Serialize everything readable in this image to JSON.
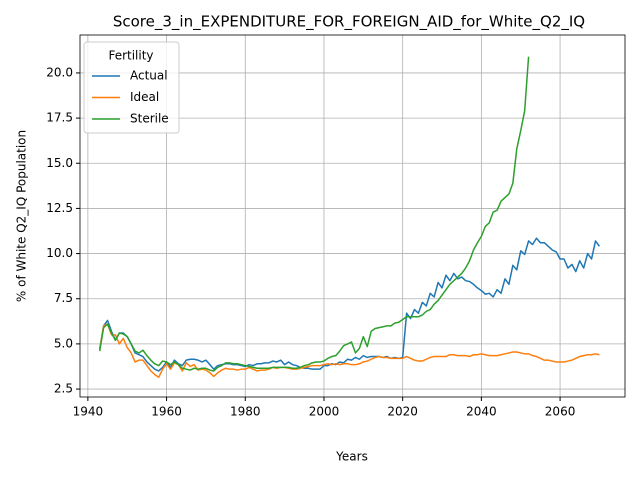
{
  "chart_data": {
    "type": "line",
    "title": "Score_3_in_EXPENDITURE_FOR_FOREIGN_AID_for_White_Q2_IQ",
    "xlabel": "Years",
    "ylabel": "% of White Q2_IQ Population",
    "legend_title": "Fertility",
    "legend": "upper left",
    "grid": true,
    "x": [
      1943,
      1944,
      1945,
      1946,
      1947,
      1948,
      1949,
      1950,
      1951,
      1952,
      1953,
      1954,
      1955,
      1956,
      1957,
      1958,
      1959,
      1960,
      1961,
      1962,
      1963,
      1964,
      1965,
      1966,
      1967,
      1968,
      1969,
      1970,
      1971,
      1972,
      1973,
      1974,
      1975,
      1976,
      1977,
      1978,
      1979,
      1980,
      1981,
      1982,
      1983,
      1984,
      1985,
      1986,
      1987,
      1988,
      1989,
      1990,
      1991,
      1992,
      1993,
      1994,
      1995,
      1996,
      1997,
      1998,
      1999,
      2000,
      2001,
      2002,
      2003,
      2004,
      2005,
      2006,
      2007,
      2008,
      2009,
      2010,
      2011,
      2012,
      2013,
      2014,
      2015,
      2016,
      2017,
      2018,
      2019,
      2020,
      2021,
      2022,
      2023,
      2024,
      2025,
      2026,
      2027,
      2028,
      2029,
      2030,
      2031,
      2032,
      2033,
      2034,
      2035,
      2036,
      2037,
      2038,
      2039,
      2040,
      2041,
      2042,
      2043,
      2044,
      2045,
      2046,
      2047,
      2048,
      2049,
      2050,
      2051,
      2052,
      2053,
      2054,
      2055,
      2056,
      2057,
      2058,
      2059,
      2060,
      2061,
      2062,
      2063,
      2064,
      2065,
      2066,
      2067,
      2068,
      2069,
      2070
    ],
    "series": [
      {
        "name": "Actual",
        "color": "#1f77b4",
        "values": [
          4.7,
          6.0,
          6.3,
          5.7,
          5.2,
          5.6,
          5.6,
          5.4,
          5.0,
          4.5,
          4.4,
          4.3,
          4.0,
          3.8,
          3.6,
          3.5,
          3.7,
          4.0,
          3.7,
          4.1,
          3.9,
          3.8,
          4.1,
          4.15,
          4.15,
          4.1,
          4.0,
          4.1,
          3.85,
          3.6,
          3.8,
          3.85,
          3.9,
          3.9,
          3.85,
          3.85,
          3.8,
          3.75,
          3.85,
          3.8,
          3.9,
          3.9,
          3.95,
          3.95,
          4.05,
          4.0,
          4.1,
          3.85,
          4.0,
          3.85,
          3.8,
          3.7,
          3.65,
          3.65,
          3.6,
          3.6,
          3.6,
          3.8,
          3.8,
          3.9,
          3.85,
          4.0,
          3.95,
          4.15,
          4.1,
          4.25,
          4.15,
          4.35,
          4.25,
          4.3,
          4.3,
          4.3,
          4.25,
          4.3,
          4.2,
          4.25,
          4.2,
          4.25,
          6.7,
          6.4,
          6.9,
          6.7,
          7.3,
          7.1,
          7.8,
          7.6,
          8.4,
          8.1,
          8.8,
          8.5,
          8.9,
          8.6,
          8.7,
          8.5,
          8.45,
          8.3,
          8.1,
          7.95,
          7.75,
          7.8,
          7.6,
          8.0,
          7.8,
          8.6,
          8.3,
          9.35,
          9.1,
          10.15,
          9.95,
          10.7,
          10.5,
          10.85,
          10.6,
          10.6,
          10.4,
          10.2,
          10.1,
          9.7,
          9.7,
          9.2,
          9.4,
          9.0,
          9.6,
          9.2,
          10.0,
          9.7,
          10.7,
          10.4
        ]
      },
      {
        "name": "Ideal",
        "color": "#ff7f0e",
        "values": [
          4.7,
          6.0,
          6.1,
          5.5,
          5.5,
          5.0,
          5.3,
          4.8,
          4.5,
          4.0,
          4.1,
          4.1,
          3.8,
          3.5,
          3.3,
          3.15,
          3.6,
          3.9,
          3.6,
          3.95,
          3.85,
          3.5,
          3.95,
          3.75,
          3.85,
          3.55,
          3.6,
          3.55,
          3.4,
          3.2,
          3.4,
          3.55,
          3.65,
          3.6,
          3.6,
          3.55,
          3.6,
          3.6,
          3.7,
          3.6,
          3.5,
          3.55,
          3.55,
          3.6,
          3.7,
          3.65,
          3.7,
          3.7,
          3.65,
          3.6,
          3.6,
          3.65,
          3.7,
          3.75,
          3.8,
          3.8,
          3.8,
          3.85,
          3.9,
          3.85,
          3.9,
          3.85,
          3.9,
          3.9,
          3.85,
          3.85,
          3.9,
          4.0,
          4.05,
          4.15,
          4.25,
          4.3,
          4.25,
          4.25,
          4.2,
          4.2,
          4.2,
          4.2,
          4.3,
          4.2,
          4.1,
          4.05,
          4.05,
          4.15,
          4.25,
          4.3,
          4.3,
          4.3,
          4.3,
          4.4,
          4.4,
          4.35,
          4.35,
          4.35,
          4.3,
          4.4,
          4.4,
          4.45,
          4.4,
          4.35,
          4.35,
          4.35,
          4.4,
          4.45,
          4.5,
          4.55,
          4.55,
          4.5,
          4.45,
          4.45,
          4.35,
          4.3,
          4.2,
          4.1,
          4.1,
          4.05,
          4.0,
          4.0,
          4.0,
          4.05,
          4.1,
          4.2,
          4.3,
          4.35,
          4.4,
          4.4,
          4.45,
          4.4
        ]
      },
      {
        "name": "Sterile",
        "color": "#2ca02c",
        "values": [
          4.6,
          5.9,
          6.1,
          5.6,
          5.2,
          5.6,
          5.55,
          5.4,
          5.0,
          4.6,
          4.5,
          4.65,
          4.35,
          4.1,
          3.9,
          3.8,
          4.05,
          4.0,
          3.85,
          4.0,
          3.85,
          3.65,
          3.6,
          3.55,
          3.65,
          3.6,
          3.65,
          3.65,
          3.55,
          3.5,
          3.7,
          3.8,
          3.95,
          3.95,
          3.9,
          3.9,
          3.85,
          3.8,
          3.75,
          3.7,
          3.65,
          3.65,
          3.65,
          3.65,
          3.7,
          3.7,
          3.7,
          3.7,
          3.7,
          3.65,
          3.65,
          3.7,
          3.8,
          3.85,
          3.95,
          4.0,
          4.0,
          4.05,
          4.2,
          4.3,
          4.35,
          4.6,
          4.9,
          5.0,
          5.1,
          4.5,
          4.75,
          5.4,
          4.85,
          5.7,
          5.85,
          5.9,
          5.95,
          6.0,
          6.0,
          6.15,
          6.2,
          6.35,
          6.5,
          6.5,
          6.5,
          6.5,
          6.6,
          6.8,
          6.9,
          7.2,
          7.4,
          7.7,
          8.0,
          8.3,
          8.5,
          8.7,
          8.9,
          9.2,
          9.6,
          10.2,
          10.6,
          10.95,
          11.5,
          11.7,
          12.3,
          12.4,
          12.9,
          13.1,
          13.3,
          13.9,
          15.8,
          16.8,
          17.9,
          20.9,
          null,
          null,
          null,
          null,
          null,
          null,
          null,
          null,
          null,
          null,
          null,
          null,
          null,
          null,
          null,
          null,
          null,
          null
        ]
      }
    ],
    "xlim": [
      1938,
      2076.5
    ],
    "xticks": [
      1940,
      1960,
      1980,
      2000,
      2020,
      2040,
      2060
    ],
    "ylim": [
      2.06,
      22.1
    ],
    "yticks": [
      2.5,
      {
        "value": 5,
        "label": "5.0"
      },
      7.5,
      {
        "value": 10,
        "label": "10.0"
      },
      12.5,
      {
        "value": 15,
        "label": "15.0"
      },
      17.5,
      {
        "value": 20,
        "label": "20.0"
      }
    ]
  }
}
